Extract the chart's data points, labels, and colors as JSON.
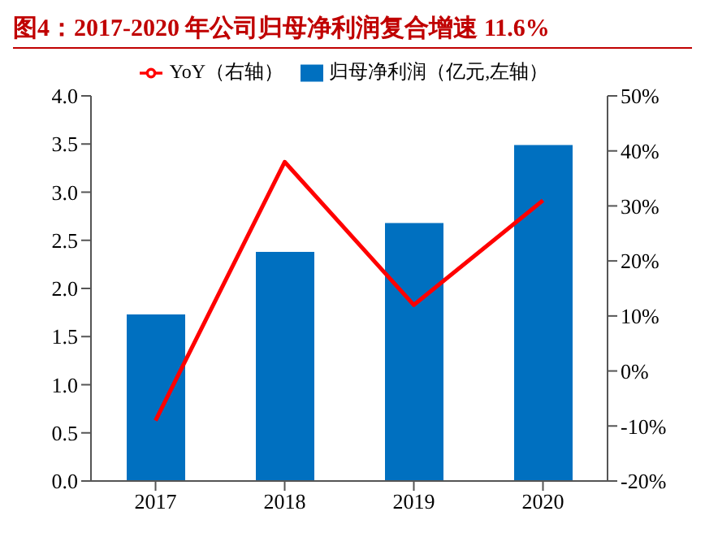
{
  "chart_data": {
    "type": "bar",
    "title": "图4：2017-2020 年公司归母净利润复合增速 11.6%",
    "categories": [
      "2017",
      "2018",
      "2019",
      "2020"
    ],
    "series": [
      {
        "name": "归母净利润（亿元,左轴）",
        "color": "#0070c0",
        "values": [
          1.73,
          2.38,
          2.68,
          3.49
        ]
      },
      {
        "name": "YoY（右轴）",
        "type": "line",
        "axis": "y2",
        "color": "#ff0000",
        "values": [
          -9,
          38,
          12,
          31
        ]
      }
    ],
    "ylim": [
      0,
      4
    ],
    "yticks": [
      {
        "value": 0,
        "label": "0.0"
      },
      {
        "value": 0.5,
        "label": "0.5"
      },
      {
        "value": 1,
        "label": "1.0"
      },
      {
        "value": 1.5,
        "label": "1.5"
      },
      {
        "value": 2,
        "label": "2.0"
      },
      {
        "value": 2.5,
        "label": "2.5"
      },
      {
        "value": 3,
        "label": "3.0"
      },
      {
        "value": 3.5,
        "label": "3.5"
      },
      {
        "value": 4,
        "label": "4.0"
      }
    ],
    "y2lim": [
      -20,
      50
    ],
    "y2ticks": [
      {
        "value": -20,
        "label": "-20%"
      },
      {
        "value": -10,
        "label": "-10%"
      },
      {
        "value": 0,
        "label": "0%"
      },
      {
        "value": 10,
        "label": "10%"
      },
      {
        "value": 20,
        "label": "20%"
      },
      {
        "value": 30,
        "label": "30%"
      },
      {
        "value": 40,
        "label": "40%"
      },
      {
        "value": 50,
        "label": "50%"
      }
    ],
    "legend": "top",
    "grid": false,
    "marker": "none"
  }
}
